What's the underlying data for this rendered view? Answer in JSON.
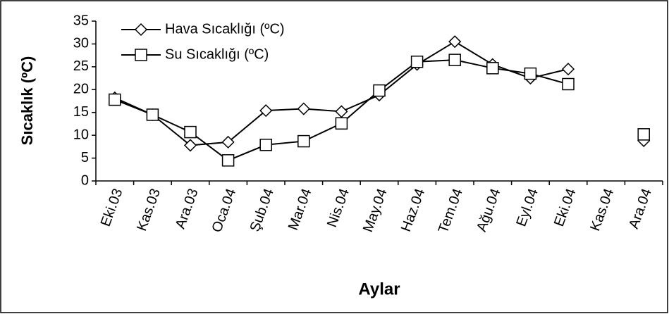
{
  "chart_data": {
    "type": "line",
    "x_label": "Aylar",
    "y_label": "Sıcaklık (ºC)",
    "categories": [
      "Eki.03",
      "Kas.03",
      "Ara.03",
      "Oca.04",
      "Şub.04",
      "Mar.04",
      "Nis.04",
      "May.04",
      "Haz.04",
      "Tem.04",
      "Ağu.04",
      "Eyl.04",
      "Eki.04",
      "Kas.04",
      "Ara.04"
    ],
    "series": [
      {
        "name": "Hava Sıcaklığı (ºC)",
        "color": "#000000",
        "marker": "diamond",
        "values": [
          18.2,
          14.5,
          7.8,
          8.5,
          15.4,
          15.8,
          15.2,
          18.8,
          25.5,
          30.5,
          25.5,
          22.5,
          24.5,
          null,
          8.8
        ]
      },
      {
        "name": "Su Sıcaklığı (ºC)",
        "color": "#000000",
        "marker": "square",
        "values": [
          17.8,
          14.5,
          10.7,
          4.5,
          7.9,
          8.7,
          12.6,
          19.8,
          26.1,
          26.5,
          24.7,
          23.5,
          21.2,
          null,
          10.2
        ]
      }
    ],
    "ylim": [
      0,
      35
    ],
    "yticks": [
      0,
      5,
      10,
      15,
      20,
      25,
      30,
      35
    ],
    "grid": false
  }
}
